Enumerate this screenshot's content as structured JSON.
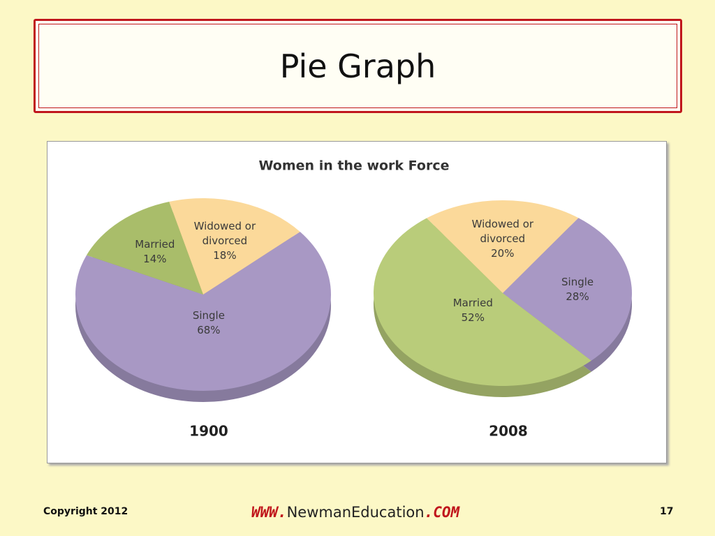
{
  "slide": {
    "title": "Pie Graph",
    "copyright": "Copyright 2012",
    "url_parts": [
      "WWW.",
      "NewmanEducation",
      ".COM"
    ],
    "page_number": "17"
  },
  "figure_title": "Women in the work Force",
  "chart_data": [
    {
      "type": "pie",
      "title": "1900",
      "categories": [
        "Widowed or divorced",
        "Single",
        "Married"
      ],
      "values": [
        18,
        68,
        14
      ],
      "value_labels": [
        "18%",
        "68%",
        "14%"
      ],
      "colors": [
        "#fbd99a",
        "#a898c4",
        "#a9bd6a"
      ]
    },
    {
      "type": "pie",
      "title": "2008",
      "categories": [
        "Widowed or divorced",
        "Single",
        "Married"
      ],
      "values": [
        20,
        28,
        52
      ],
      "value_labels": [
        "20%",
        "28%",
        "52%"
      ],
      "colors": [
        "#fbd99a",
        "#a898c4",
        "#b9cc7a"
      ]
    }
  ]
}
